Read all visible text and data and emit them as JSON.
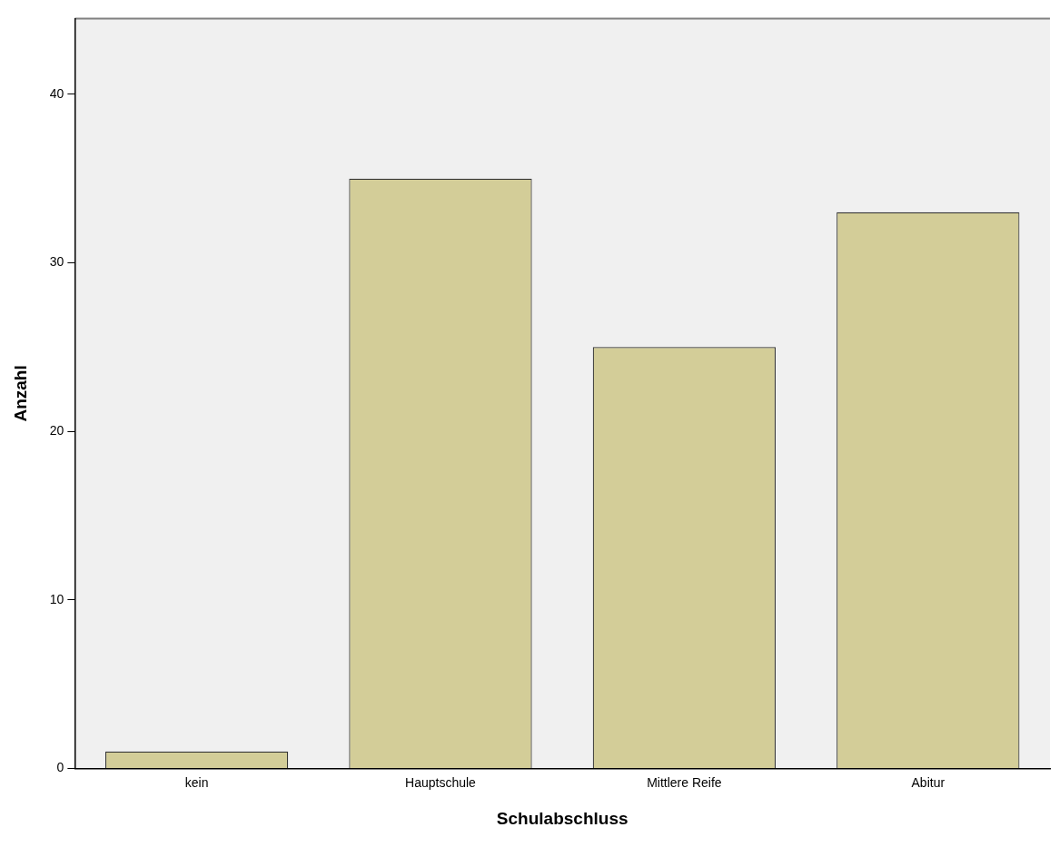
{
  "chart_data": {
    "type": "bar",
    "xlabel": "Schulabschluss",
    "ylabel": "Anzahl",
    "categories": [
      "kein",
      "Hauptschule",
      "Mittlere Reife",
      "Abitur"
    ],
    "values": [
      1,
      35,
      25,
      33
    ],
    "color": "#d3cd98",
    "ylim": [
      0,
      44.5
    ],
    "yticks": [
      0,
      10,
      20,
      30,
      40
    ],
    "grid": false,
    "legend": false
  }
}
